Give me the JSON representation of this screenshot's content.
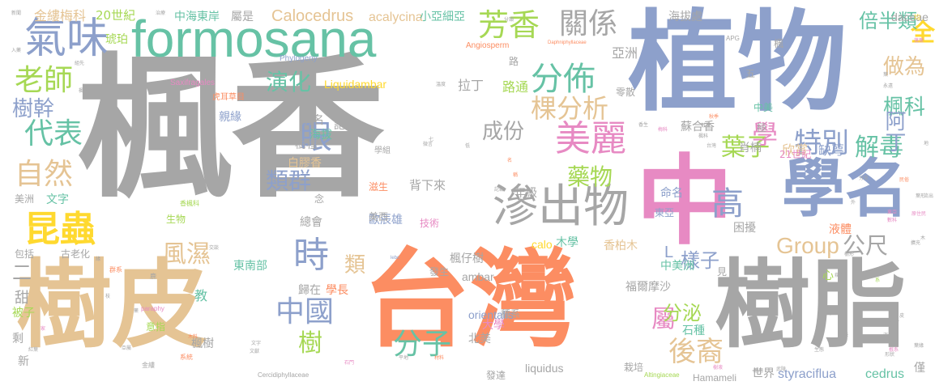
{
  "palette": {
    "gray": "#a6a6a6",
    "orange": "#fc8d62",
    "blue": "#8da0cb",
    "pink": "#e78ac3",
    "green": "#66c2a5",
    "lime": "#a6d854",
    "yellow": "#ffd92f",
    "tan": "#e5c494"
  },
  "words": [
    {
      "text": "楓香",
      "color": "#a6a6a6"
    },
    {
      "text": "植物",
      "color": "#8da0cb"
    },
    {
      "text": "台灣",
      "color": "#fc8d62"
    },
    {
      "text": "中",
      "color": "#e78ac3"
    },
    {
      "text": "樹皮",
      "color": "#e5c494"
    },
    {
      "text": "樹脂",
      "color": "#a6a6a6"
    },
    {
      "text": "學名",
      "color": "#8da0cb"
    },
    {
      "text": "formosana",
      "color": "#66c2a5"
    },
    {
      "text": "滲出物",
      "color": "#a6a6a6"
    },
    {
      "text": "氣味",
      "color": "#8da0cb"
    },
    {
      "text": "美麗",
      "color": "#e78ac3"
    },
    {
      "text": "分佈",
      "color": "#66c2a5"
    },
    {
      "text": "關係",
      "color": "#a6a6a6"
    },
    {
      "text": "芳香",
      "color": "#a6d854"
    },
    {
      "text": "昆蟲",
      "color": "#ffd92f"
    },
    {
      "text": "代表",
      "color": "#66c2a5"
    },
    {
      "text": "老師",
      "color": "#a6d854"
    },
    {
      "text": "自然",
      "color": "#e5c494"
    },
    {
      "text": "時",
      "color": "#8da0cb"
    },
    {
      "text": "高",
      "color": "#8da0cb"
    },
    {
      "text": "分子",
      "color": "#66c2a5"
    },
    {
      "text": "Group",
      "color": "#e5c494"
    },
    {
      "text": "特別",
      "color": "#8da0cb"
    },
    {
      "text": "葉子",
      "color": "#a6d854"
    },
    {
      "text": "解毒",
      "color": "#66c2a5"
    },
    {
      "text": "全",
      "color": "#ffd92f"
    },
    {
      "text": "眼",
      "color": "#8da0cb"
    },
    {
      "text": "中國",
      "color": "#8da0cb"
    },
    {
      "text": "屬",
      "color": "#e78ac3"
    },
    {
      "text": "後裔",
      "color": "#e5c494"
    },
    {
      "text": "公尺",
      "color": "#a6a6a6"
    },
    {
      "text": "樹",
      "color": "#a6d854"
    },
    {
      "text": "棵分析",
      "color": "#e5c494"
    },
    {
      "text": "學",
      "color": "#e78ac3"
    },
    {
      "text": "風濕",
      "color": "#e5c494"
    },
    {
      "text": "類群",
      "color": "#8da0cb"
    },
    {
      "text": "演化",
      "color": "#66c2a5"
    },
    {
      "text": "成份",
      "color": "#a6a6a6"
    },
    {
      "text": "樹幹",
      "color": "#8da0cb"
    },
    {
      "text": "楓科",
      "color": "#66c2a5"
    },
    {
      "text": "做為",
      "color": "#e5c494"
    },
    {
      "text": "阿丁",
      "color": "#8da0cb"
    },
    {
      "text": "倍半類",
      "color": "#66c2a5"
    },
    {
      "text": "藥物",
      "color": "#a6d854"
    },
    {
      "text": "分泌",
      "color": "#a6d854"
    },
    {
      "text": "類",
      "color": "#e5c494"
    },
    {
      "text": "樣子",
      "color": "#8da0cb"
    },
    {
      "text": "二",
      "color": "#a6a6a6"
    },
    {
      "text": "Calocedrus",
      "color": "#e5c494"
    },
    {
      "text": "acalycina",
      "color": "#e5c494"
    },
    {
      "text": "金縷梅科",
      "color": "#e5c494"
    },
    {
      "text": "20世紀",
      "color": "#a6d854"
    },
    {
      "text": "中海東岸",
      "color": "#66c2a5"
    },
    {
      "text": "屬是",
      "color": "#a6a6a6"
    },
    {
      "text": "小亞細亞",
      "color": "#66c2a5"
    },
    {
      "text": "daceae",
      "color": "#a6a6a6"
    },
    {
      "text": "海拔處",
      "color": "#a6a6a6"
    },
    {
      "text": "亞洲",
      "color": "#a6a6a6"
    },
    {
      "text": "拉丁",
      "color": "#a6a6a6"
    },
    {
      "text": "路通",
      "color": "#a6d854"
    },
    {
      "text": "Liquidambar",
      "color": "#ffd92f"
    },
    {
      "text": "Phylogeny",
      "color": "#8da0cb"
    },
    {
      "text": "Angiosperm",
      "color": "#fc8d62"
    },
    {
      "text": "Saxifragales",
      "color": "#e78ac3"
    },
    {
      "text": "琥珀",
      "color": "#a6d854"
    },
    {
      "text": "肖楠",
      "color": "#a6a6a6"
    },
    {
      "text": "欣賞",
      "color": "#e5c494"
    },
    {
      "text": "缺萼",
      "color": "#8da0cb"
    },
    {
      "text": "21世紀",
      "color": "#e78ac3"
    },
    {
      "text": "蘇合香",
      "color": "#a6a6a6"
    },
    {
      "text": "樹種",
      "color": "#a6a6a6"
    },
    {
      "text": "海拔",
      "color": "#66c2a5"
    },
    {
      "text": "親緣",
      "color": "#8da0cb"
    },
    {
      "text": "別名",
      "color": "#a6a6a6"
    },
    {
      "text": "記",
      "color": "#a6a6a6"
    },
    {
      "text": "白膠香",
      "color": "#e5c494"
    },
    {
      "text": "背下來",
      "color": "#a6a6a6"
    },
    {
      "text": "滋生",
      "color": "#fc8d62"
    },
    {
      "text": "年級",
      "color": "#a6a6a6"
    },
    {
      "text": "命名",
      "color": "#8da0cb"
    },
    {
      "text": "東亞",
      "color": "#8da0cb"
    },
    {
      "text": "歐辰雄",
      "color": "#8da0cb"
    },
    {
      "text": "技術",
      "color": "#e78ac3"
    },
    {
      "text": "美西",
      "color": "#a6a6a6"
    },
    {
      "text": "總會",
      "color": "#a6a6a6"
    },
    {
      "text": "文字",
      "color": "#66c2a5"
    },
    {
      "text": "美洲",
      "color": "#a6a6a6"
    },
    {
      "text": "生物",
      "color": "#a6d854"
    },
    {
      "text": "木學",
      "color": "#66c2a5"
    },
    {
      "text": "calo",
      "color": "#ffd92f"
    },
    {
      "text": "香柏木",
      "color": "#e5c494"
    },
    {
      "text": "困擾",
      "color": "#a6a6a6"
    },
    {
      "text": "液體",
      "color": "#fc8d62"
    },
    {
      "text": "中美洲",
      "color": "#66c2a5"
    },
    {
      "text": "東南部",
      "color": "#66c2a5"
    },
    {
      "text": "古老化",
      "color": "#a6a6a6"
    },
    {
      "text": "包括",
      "color": "#a6a6a6"
    },
    {
      "text": "楓仔樹",
      "color": "#a6a6a6"
    },
    {
      "text": "發生",
      "color": "#a6a6a6"
    },
    {
      "text": "ambar",
      "color": "#a6a6a6"
    },
    {
      "text": "福爾摩沙",
      "color": "#a6a6a6"
    },
    {
      "text": "學長",
      "color": "#fc8d62"
    },
    {
      "text": "歸在",
      "color": "#a6a6a6"
    },
    {
      "text": "教",
      "color": "#66c2a5"
    },
    {
      "text": "意指",
      "color": "#a6d854"
    },
    {
      "text": "orientalis",
      "color": "#8da0cb"
    },
    {
      "text": "種系",
      "color": "#a6a6a6"
    },
    {
      "text": "大學",
      "color": "#e78ac3"
    },
    {
      "text": "北美",
      "color": "#a6a6a6"
    },
    {
      "text": "石種",
      "color": "#66c2a5"
    },
    {
      "text": "楓樹",
      "color": "#a6a6a6"
    },
    {
      "text": "liquidus",
      "color": "#a6a6a6"
    },
    {
      "text": "栽培",
      "color": "#a6a6a6"
    },
    {
      "text": "Hamameli",
      "color": "#a6a6a6"
    },
    {
      "text": "世界",
      "color": "#a6a6a6"
    },
    {
      "text": "styraciflua",
      "color": "#8da0cb"
    },
    {
      "text": "cedrus",
      "color": "#66c2a5"
    },
    {
      "text": "僅",
      "color": "#a6a6a6"
    },
    {
      "text": "甜",
      "color": "#a6a6a6"
    },
    {
      "text": "被子",
      "color": "#a6d854"
    },
    {
      "text": "剩",
      "color": "#a6a6a6"
    },
    {
      "text": "新",
      "color": "#a6a6a6"
    },
    {
      "text": "心",
      "color": "#a6d854"
    },
    {
      "text": "說",
      "color": "#a6a6a6"
    },
    {
      "text": "見",
      "color": "#a6a6a6"
    },
    {
      "text": "L",
      "color": "#8da0cb"
    },
    {
      "text": "五",
      "color": "#a6a6a6"
    },
    {
      "text": "路",
      "color": "#a6a6a6"
    },
    {
      "text": "零散",
      "color": "#a6a6a6"
    },
    {
      "text": "中美",
      "color": "#66c2a5"
    },
    {
      "text": "極",
      "color": "#a6a6a6"
    },
    {
      "text": "念",
      "color": "#a6a6a6"
    },
    {
      "text": "楓",
      "color": "#a6a6a6"
    },
    {
      "text": "APG",
      "color": "#a6a6a6"
    },
    {
      "text": "學組",
      "color": "#a6a6a6"
    },
    {
      "text": "虎耳草目",
      "color": "#fc8d62"
    },
    {
      "text": "香楓科",
      "color": "#a6d854"
    },
    {
      "text": "Cercidiphyllaceae",
      "color": "#a6a6a6"
    },
    {
      "text": "Altingiaceae",
      "color": "#a6d854"
    },
    {
      "text": "Daphniphyllaceae",
      "color": "#fc8d62"
    },
    {
      "text": "paraphy",
      "color": "#e78ac3"
    },
    {
      "text": "分類",
      "color": "#a6a6a6"
    },
    {
      "text": "治療",
      "color": "#a6a6a6"
    },
    {
      "text": "新聞",
      "color": "#a6a6a6"
    },
    {
      "text": "入藥",
      "color": "#a6a6a6"
    },
    {
      "text": "組先",
      "color": "#a6a6a6"
    },
    {
      "text": "修葺",
      "color": "#a6a6a6"
    },
    {
      "text": "楓樹大道",
      "color": "#a6a6a6"
    },
    {
      "text": "獨特",
      "color": "#a6a6a6"
    },
    {
      "text": "家",
      "color": "#e78ac3"
    },
    {
      "text": "紅葉",
      "color": "#a6a6a6"
    },
    {
      "text": "分支",
      "color": "#a6a6a6"
    },
    {
      "text": "發達",
      "color": "#a6a6a6"
    },
    {
      "text": "系統",
      "color": "#fc8d62"
    },
    {
      "text": "金縷",
      "color": "#a6a6a6"
    },
    {
      "text": "東亞",
      "color": "#e78ac3"
    },
    {
      "text": "交談",
      "color": "#a6a6a6"
    },
    {
      "text": "溫度",
      "color": "#a6a6a6"
    },
    {
      "text": "微言",
      "color": "#a6a6a6"
    },
    {
      "text": "低",
      "color": "#a6a6a6"
    },
    {
      "text": "記載",
      "color": "#a6a6a6"
    },
    {
      "text": "材料",
      "color": "#fc8d62"
    },
    {
      "text": "平地",
      "color": "#a6a6a6"
    },
    {
      "text": "木料",
      "color": "#fc8d62"
    },
    {
      "text": "文獻",
      "color": "#a6a6a6"
    },
    {
      "text": "消化",
      "color": "#a6a6a6"
    },
    {
      "text": "形狀",
      "color": "#a6a6a6"
    },
    {
      "text": "武陵",
      "color": "#a6a6a6"
    },
    {
      "text": "擴充",
      "color": "#a6a6a6"
    },
    {
      "text": "流出",
      "color": "#a6a6a6"
    },
    {
      "text": "原住民",
      "color": "#e78ac3"
    },
    {
      "text": "幾乎",
      "color": "#a6a6a6"
    },
    {
      "text": "均",
      "color": "#ffd92f"
    },
    {
      "text": "落葉",
      "color": "#e78ac3"
    },
    {
      "text": "永遠",
      "color": "#a6a6a6"
    },
    {
      "text": "梅科",
      "color": "#e78ac3"
    },
    {
      "text": "香生",
      "color": "#a6a6a6"
    },
    {
      "text": "秋季",
      "color": "#fc8d62"
    },
    {
      "text": "數量",
      "color": "#a6a6a6"
    },
    {
      "text": "數科",
      "color": "#e78ac3"
    },
    {
      "text": "葉形",
      "color": "#a6a6a6"
    },
    {
      "text": "葉緣",
      "color": "#a6a6a6"
    },
    {
      "text": "葉脈",
      "color": "#a6a6a6"
    },
    {
      "text": "楓科",
      "color": "#a6a6a6"
    },
    {
      "text": "根系",
      "color": "#e78ac3"
    },
    {
      "text": "種子",
      "color": "#a6a6a6"
    },
    {
      "text": "樹形",
      "color": "#a6a6a6"
    },
    {
      "text": "lebc",
      "color": "#8da0cb"
    },
    {
      "text": "群系",
      "color": "#fc8d62"
    },
    {
      "text": "亞屬",
      "color": "#a6a6a6"
    },
    {
      "text": "民俗",
      "color": "#fc8d62"
    },
    {
      "text": "植物名",
      "color": "#a6a6a6"
    },
    {
      "text": "台灣",
      "color": "#a6a6a6"
    },
    {
      "text": "文字",
      "color": "#a6a6a6"
    },
    {
      "text": "七",
      "color": "#a6a6a6"
    },
    {
      "text": "石門",
      "color": "#e78ac3"
    },
    {
      "text": "夏威夷",
      "color": "#a6a6a6"
    },
    {
      "text": "應用",
      "color": "#a6a6a6"
    },
    {
      "text": "樹液",
      "color": "#e78ac3"
    },
    {
      "text": "生態",
      "color": "#a6a6a6"
    },
    {
      "text": "鹿",
      "color": "#a6a6a6"
    },
    {
      "text": "藥",
      "color": "#a6a6a6"
    },
    {
      "text": "木",
      "color": "#a6a6a6"
    },
    {
      "text": "外",
      "color": "#a6a6a6"
    },
    {
      "text": "地",
      "color": "#a6a6a6"
    },
    {
      "text": "名",
      "color": "#fc8d62"
    },
    {
      "text": "稱",
      "color": "#fc8d62"
    },
    {
      "text": "葉",
      "color": "#a6a6a6"
    },
    {
      "text": "科",
      "color": "#a6a6a6"
    },
    {
      "text": "系",
      "color": "#a6d854"
    },
    {
      "text": "緣",
      "color": "#a6a6a6"
    },
    {
      "text": "枝",
      "color": "#a6a6a6"
    },
    {
      "text": "皮",
      "color": "#a6a6a6"
    }
  ]
}
